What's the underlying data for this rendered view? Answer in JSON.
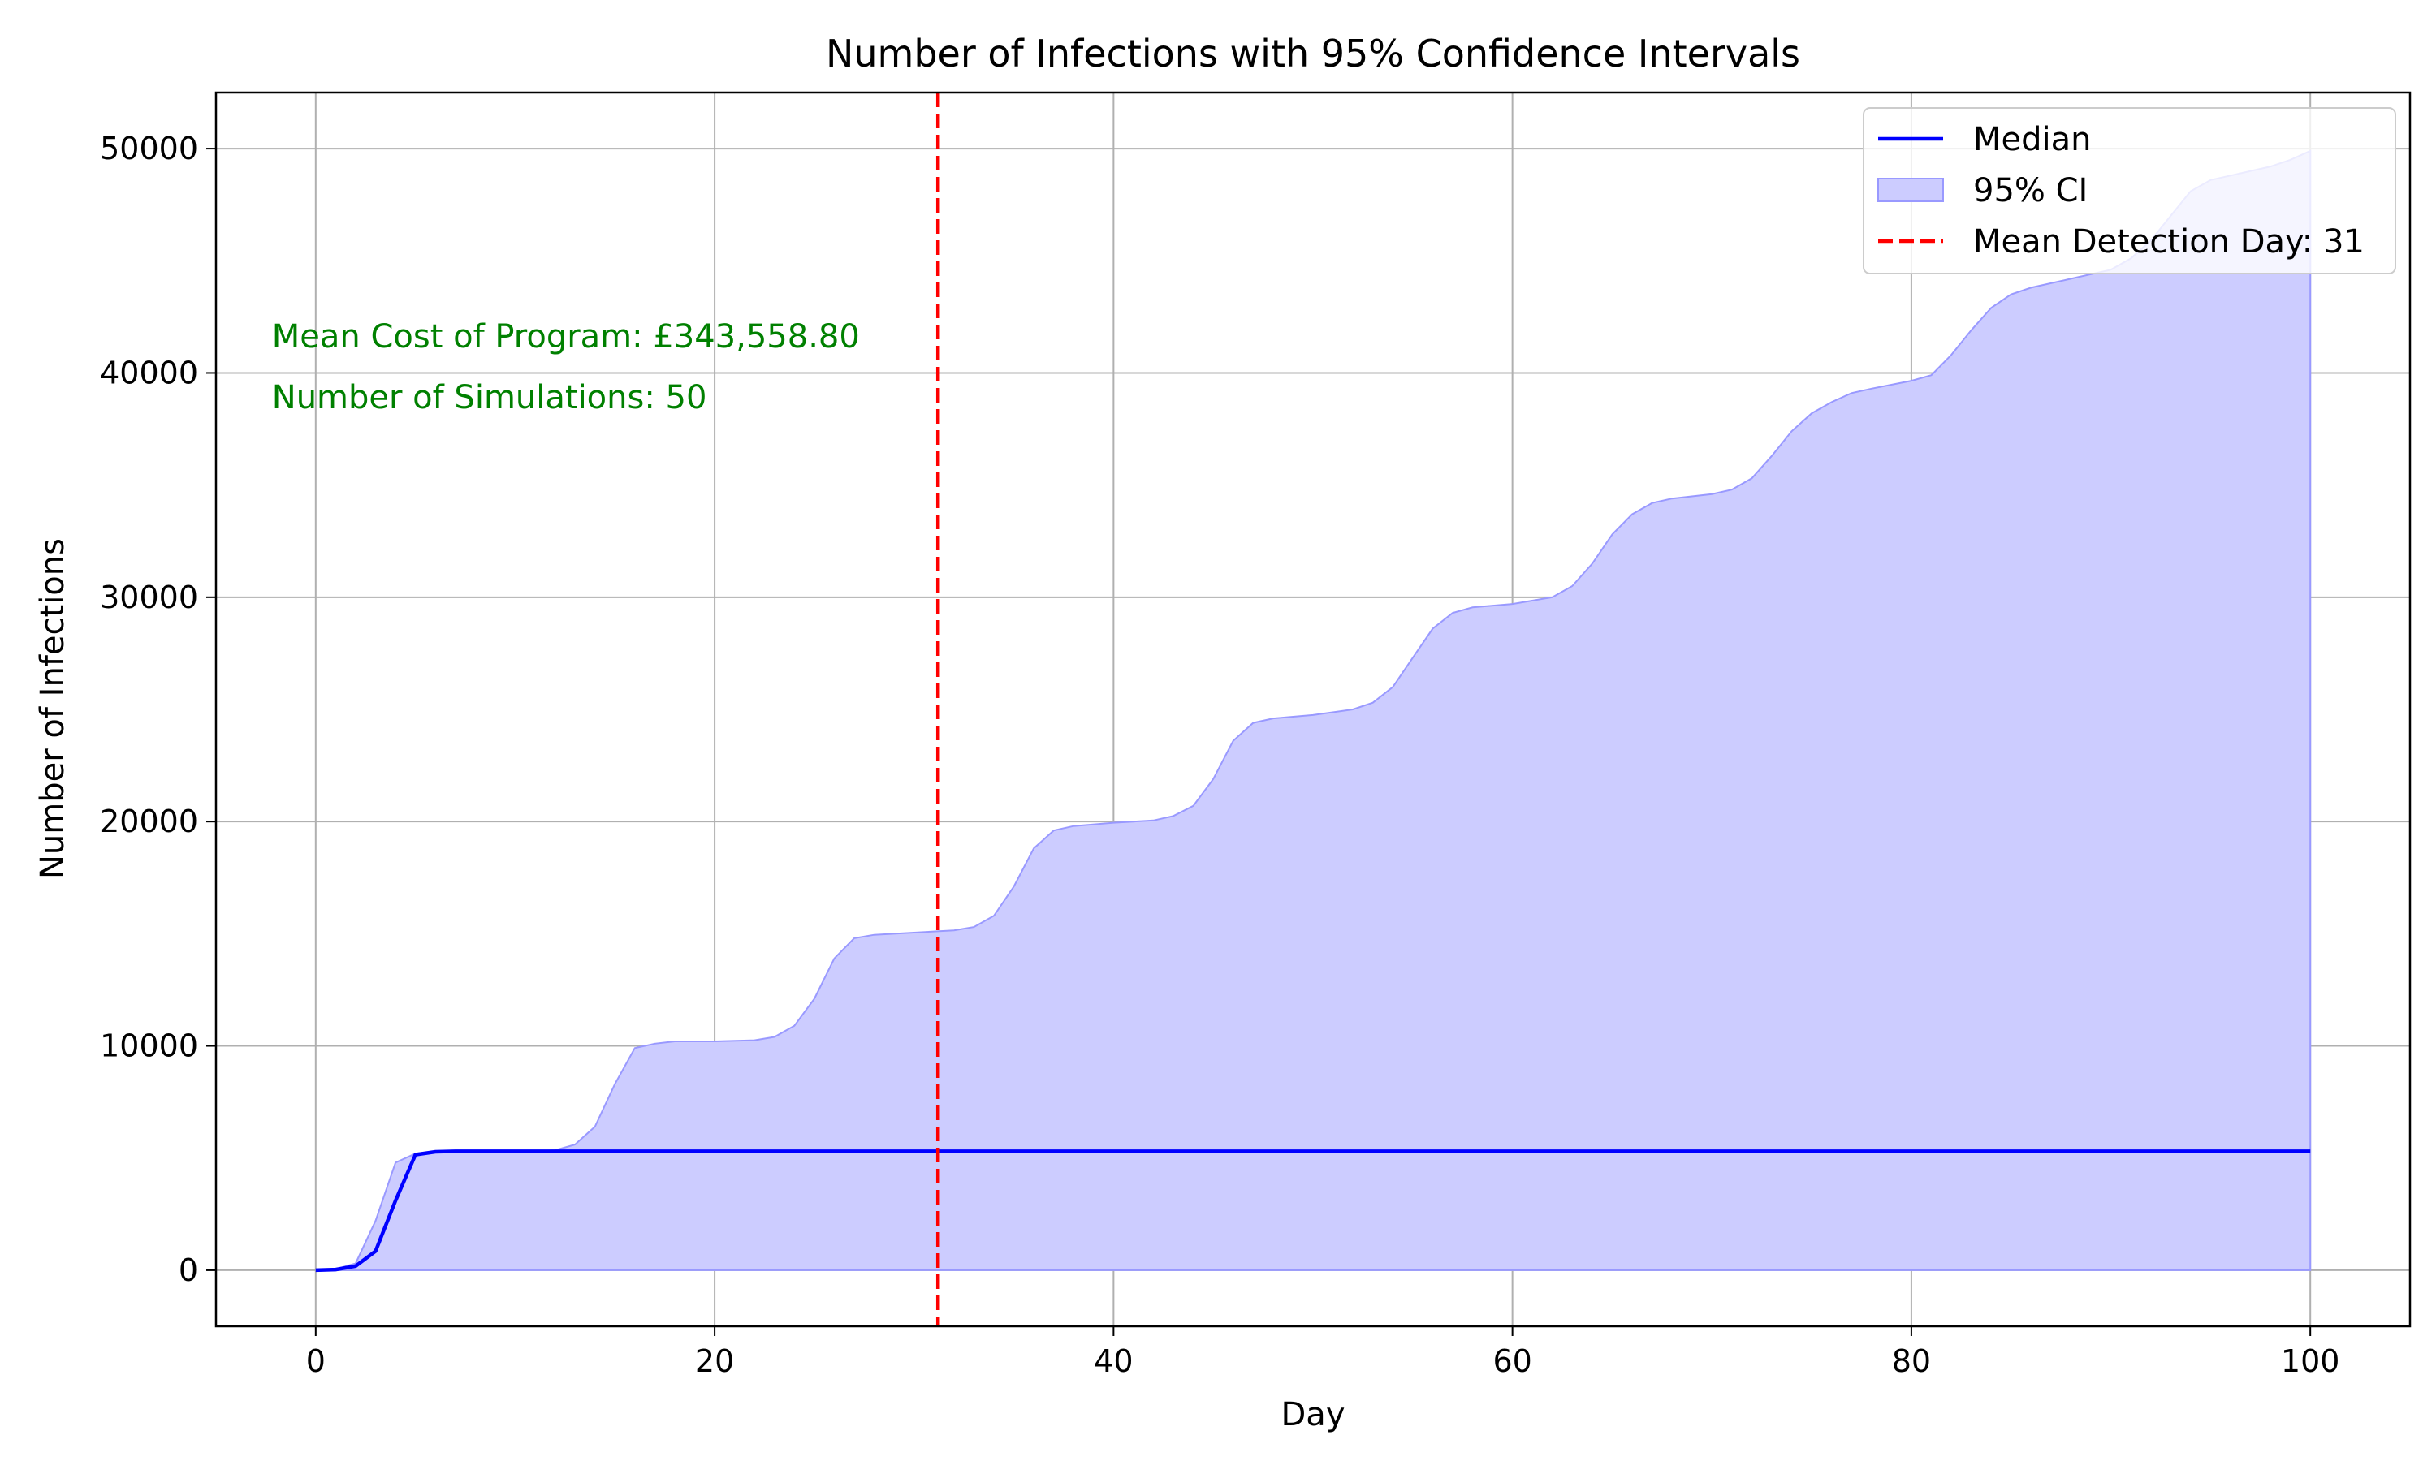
{
  "chart_data": {
    "type": "area",
    "title": "Number of Infections with 95% Confidence Intervals",
    "xlabel": "Day",
    "ylabel": "Number of Infections",
    "xlim": [
      -5,
      105
    ],
    "ylim": [
      -2500,
      52500
    ],
    "xticks": [
      0,
      20,
      40,
      60,
      80,
      100
    ],
    "yticks": [
      0,
      10000,
      20000,
      30000,
      40000,
      50000
    ],
    "grid": true,
    "legend_position": "top-right",
    "series": [
      {
        "name": "Median",
        "kind": "line",
        "color": "#0000ff",
        "x": [
          0,
          1,
          2,
          3,
          4,
          5,
          6,
          7,
          8,
          10,
          15,
          20,
          31,
          40,
          60,
          80,
          100
        ],
        "y": [
          0,
          30,
          180,
          850,
          3100,
          5150,
          5280,
          5300,
          5300,
          5300,
          5300,
          5300,
          5300,
          5300,
          5300,
          5300,
          5300
        ]
      },
      {
        "name": "95% CI",
        "kind": "band",
        "color": "#0000ff",
        "x": [
          0,
          1,
          2,
          3,
          4,
          5,
          6,
          7,
          8,
          9,
          10,
          11,
          12,
          13,
          14,
          15,
          16,
          17,
          18,
          20,
          22,
          23,
          24,
          25,
          26,
          27,
          28,
          30,
          32,
          33,
          34,
          35,
          36,
          37,
          38,
          40,
          42,
          43,
          44,
          45,
          46,
          47,
          48,
          50,
          52,
          53,
          54,
          55,
          56,
          57,
          58,
          60,
          62,
          63,
          64,
          65,
          66,
          67,
          68,
          70,
          71,
          72,
          73,
          74,
          75,
          76,
          77,
          78,
          80,
          81,
          82,
          83,
          84,
          85,
          86,
          88,
          90,
          91,
          92,
          93,
          94,
          95,
          96,
          98,
          99,
          100
        ],
        "lower": [
          0,
          0,
          0,
          0,
          0,
          0,
          0,
          0,
          0,
          0,
          0,
          0,
          0,
          0,
          0,
          0,
          0,
          0,
          0,
          0,
          0,
          0,
          0,
          0,
          0,
          0,
          0,
          0,
          0,
          0,
          0,
          0,
          0,
          0,
          0,
          0,
          0,
          0,
          0,
          0,
          0,
          0,
          0,
          0,
          0,
          0,
          0,
          0,
          0,
          0,
          0,
          0,
          0,
          0,
          0,
          0,
          0,
          0,
          0,
          0,
          0,
          0,
          0,
          0,
          0,
          0,
          0,
          0,
          0,
          0,
          0,
          0,
          0,
          0,
          0,
          0,
          0,
          0,
          0,
          0,
          0,
          0,
          0,
          0,
          0,
          0
        ],
        "upper": [
          0,
          50,
          300,
          2200,
          4800,
          5200,
          5300,
          5300,
          5300,
          5300,
          5300,
          5300,
          5350,
          5600,
          6400,
          8300,
          9900,
          10100,
          10200,
          10200,
          10250,
          10400,
          10900,
          12100,
          13900,
          14800,
          14950,
          15050,
          15150,
          15300,
          15800,
          17100,
          18800,
          19600,
          19800,
          19950,
          20050,
          20250,
          20700,
          21900,
          23600,
          24400,
          24600,
          24750,
          25000,
          25300,
          26000,
          27300,
          28600,
          29300,
          29550,
          29700,
          30000,
          30500,
          31500,
          32800,
          33700,
          34200,
          34400,
          34600,
          34800,
          35300,
          36300,
          37400,
          38200,
          38700,
          39100,
          39300,
          39650,
          39900,
          40800,
          41900,
          42900,
          43500,
          43800,
          44200,
          44600,
          45100,
          45900,
          47000,
          48100,
          48600,
          48800,
          49200,
          49500,
          49900
        ]
      },
      {
        "name": "Mean Detection Day: 31",
        "kind": "vline",
        "color": "#ff0000",
        "x": 31.2
      }
    ],
    "annotations": [
      {
        "text": "Mean Cost of Program: £343,558.80",
        "x": -2.2,
        "y": 41600,
        "color": "#008000"
      },
      {
        "text": "Number of Simulations: 50",
        "x": -2.2,
        "y": 38900,
        "color": "#008000"
      }
    ],
    "colors": {
      "median": "#0000ff",
      "ci_fill": "#ccccff",
      "ci_edge": "#9999ff",
      "detection": "#ff0000",
      "annotation": "#008000",
      "grid": "#b0b0b0"
    }
  }
}
